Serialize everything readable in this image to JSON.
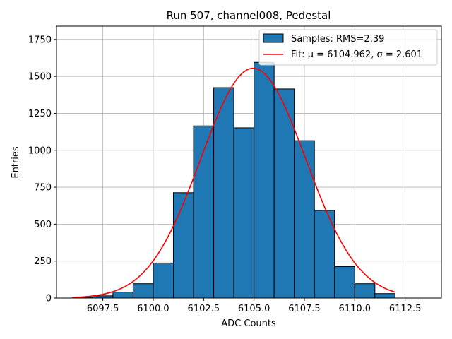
{
  "chart_data": {
    "type": "bar",
    "title": "Run 507, channel008, Pedestal",
    "xlabel": "ADC Counts",
    "ylabel": "Entries",
    "xlim": [
      6095.2,
      6114.3
    ],
    "ylim": [
      0,
      1840
    ],
    "grid": true,
    "xticks": [
      6097.5,
      6100.0,
      6102.5,
      6105.0,
      6107.5,
      6110.0,
      6112.5
    ],
    "xtick_labels": [
      "6097.5",
      "6100.0",
      "6102.5",
      "6105.0",
      "6107.5",
      "6110.0",
      "6112.5"
    ],
    "yticks": [
      0,
      250,
      500,
      750,
      1000,
      1250,
      1500,
      1750
    ],
    "ytick_labels": [
      "0",
      "250",
      "500",
      "750",
      "1000",
      "1250",
      "1500",
      "1750"
    ],
    "histogram": {
      "bin_edges": [
        6096,
        6097,
        6098,
        6099,
        6100,
        6101,
        6102,
        6103,
        6104,
        6105,
        6106,
        6107,
        6108,
        6109,
        6110,
        6111,
        6112,
        6113,
        6114
      ],
      "counts": [
        3,
        15,
        40,
        97,
        237,
        713,
        1165,
        1424,
        1152,
        1595,
        1415,
        1065,
        593,
        213,
        97,
        30,
        0,
        0
      ],
      "color": "#1f77b4",
      "edgecolor": "#000000"
    },
    "fit": {
      "mu": 6104.962,
      "sigma": 2.601,
      "amplitude": 1555,
      "x_range": [
        6096,
        6112
      ],
      "color": "#ff0000"
    },
    "legend": {
      "position": "top-right",
      "entries": [
        {
          "label": "Samples: RMS=2.39",
          "kind": "patch",
          "color": "#1f77b4"
        },
        {
          "label": "Fit: μ = 6104.962, σ = 2.601",
          "kind": "line",
          "color": "#ff0000"
        }
      ]
    }
  }
}
